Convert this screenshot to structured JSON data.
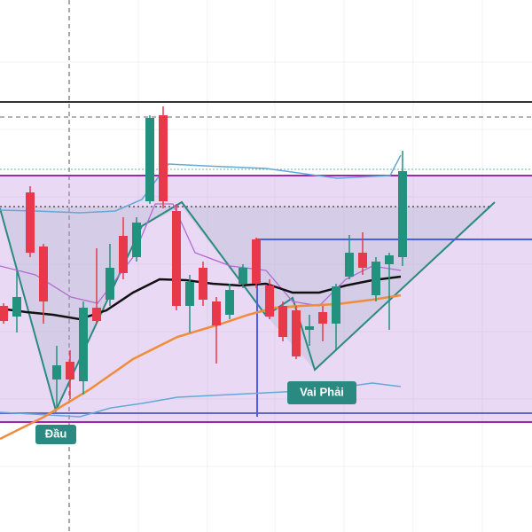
{
  "chart_data": {
    "type": "candlestick",
    "ylim": [
      0,
      600
    ],
    "up_color": "#22917e",
    "down_color": "#e8394a",
    "open": [
      255,
      243,
      383,
      322,
      172,
      192,
      170,
      253,
      262,
      334,
      310,
      373,
      470,
      362,
      255,
      298,
      260,
      245,
      280,
      330,
      278,
      255,
      250,
      228,
      248,
      235,
      288,
      315,
      267,
      302,
      310
    ],
    "close": [
      238,
      265,
      315,
      260,
      188,
      172,
      253,
      238,
      298,
      292,
      349,
      467,
      373,
      255,
      282,
      262,
      233,
      273,
      298,
      280,
      243,
      220,
      198,
      232,
      235,
      277,
      315,
      298,
      305,
      312,
      407
    ],
    "high": [
      258,
      295,
      390,
      325,
      210,
      205,
      260,
      320,
      325,
      355,
      355,
      470,
      480,
      370,
      290,
      305,
      265,
      280,
      302,
      332,
      285,
      260,
      255,
      245,
      255,
      280,
      335,
      338,
      310,
      315,
      430
    ],
    "low": [
      235,
      225,
      310,
      235,
      140,
      150,
      155,
      235,
      255,
      285,
      305,
      370,
      365,
      250,
      225,
      255,
      190,
      240,
      275,
      275,
      240,
      215,
      195,
      210,
      215,
      205,
      285,
      290,
      260,
      228,
      300
    ],
    "annotations": [
      "Đầu",
      "Vai Phải"
    ]
  }
}
